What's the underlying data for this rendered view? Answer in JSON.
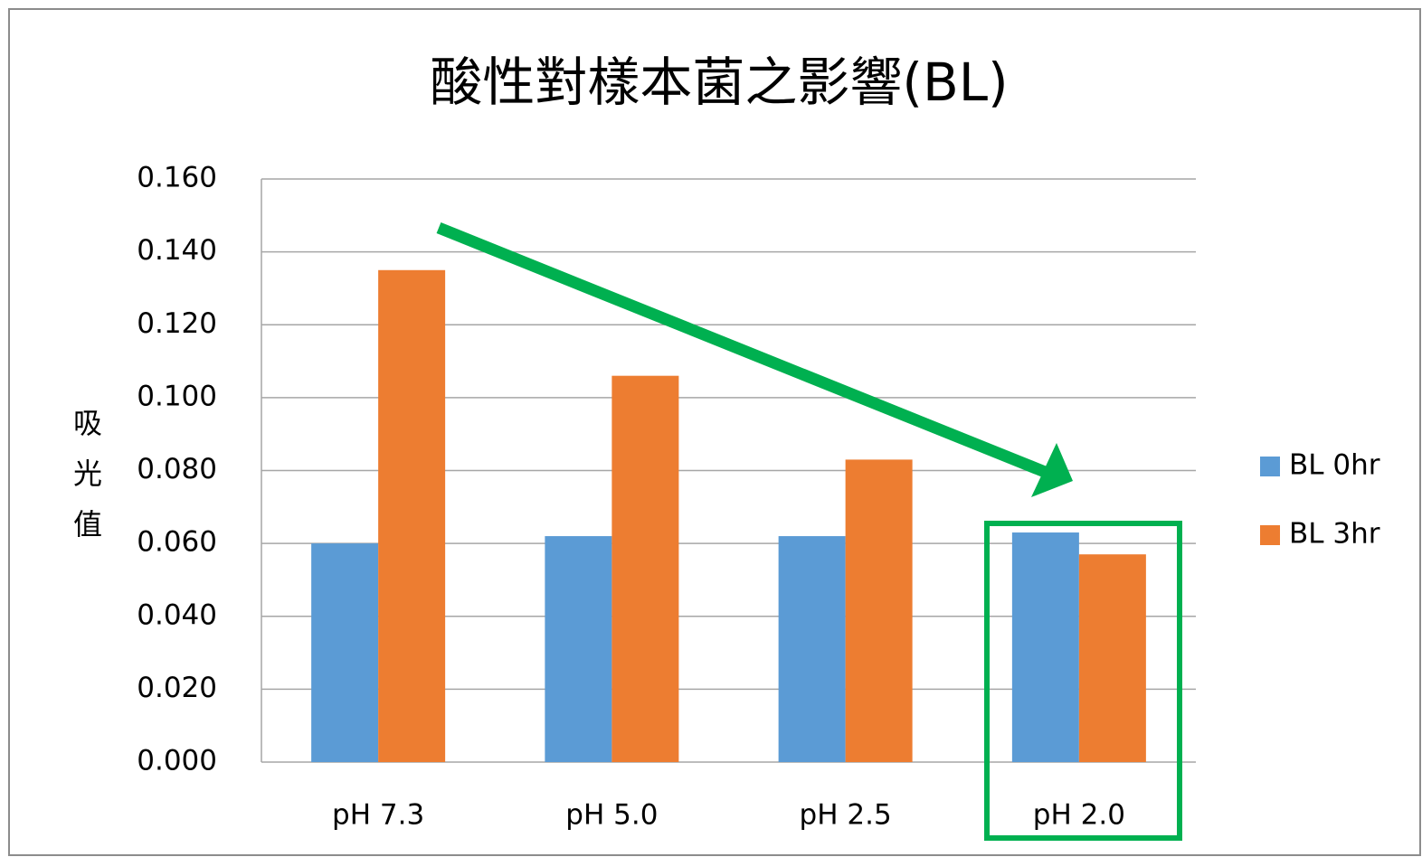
{
  "chart_data": {
    "type": "bar",
    "title": "酸性對樣本菌之影響(BL)",
    "y_label": "吸光值",
    "categories": [
      "pH 7.3",
      "pH 5.0",
      "pH 2.5",
      "pH 2.0"
    ],
    "series": [
      {
        "name": "BL 0hr",
        "color": "#5b9bd5",
        "values": [
          0.06,
          0.062,
          0.062,
          0.063
        ]
      },
      {
        "name": "BL 3hr",
        "color": "#ed7d31",
        "values": [
          0.135,
          0.106,
          0.083,
          0.057
        ]
      }
    ],
    "ylim": [
      0,
      0.16
    ],
    "yticks": [
      {
        "value": 0,
        "label": "0.000"
      },
      {
        "value": 0.02,
        "label": "0.020"
      },
      {
        "value": 0.04,
        "label": "0.040"
      },
      {
        "value": 0.06,
        "label": "0.060"
      },
      {
        "value": 0.08,
        "label": "0.080"
      },
      {
        "value": 0.1,
        "label": "0.100"
      },
      {
        "value": 0.12,
        "label": "0.120"
      },
      {
        "value": 0.14,
        "label": "0.140"
      },
      {
        "value": 0.16,
        "label": "0.160"
      }
    ],
    "grid": true,
    "legend": "right"
  }
}
